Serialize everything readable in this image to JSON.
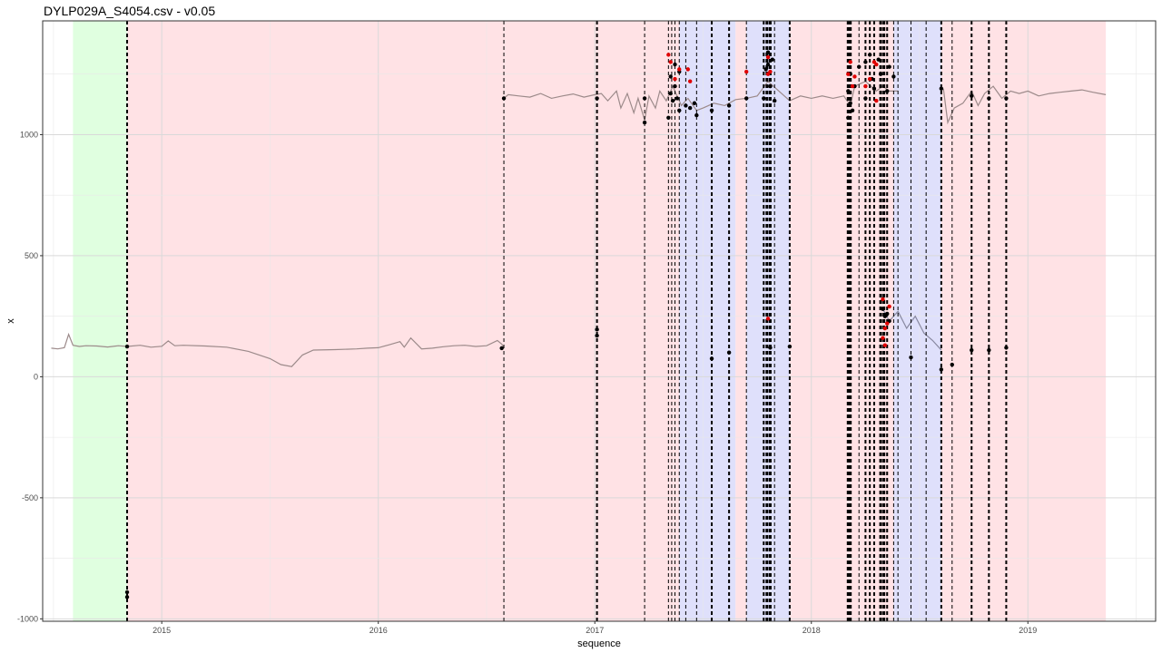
{
  "chart_data": {
    "type": "line",
    "title": "DYLP029A_S4054.csv - v0.05",
    "xlabel": "sequence",
    "ylabel": "x",
    "x_unit": "year",
    "xlim": [
      2014.45,
      2019.59
    ],
    "ylim": [
      -1010,
      1470
    ],
    "x_ticks": [
      2015,
      2016,
      2017,
      2018,
      2019
    ],
    "x_tick_labels": [
      "2015",
      "2016",
      "2017",
      "2018",
      "2019"
    ],
    "y_ticks": [
      -1000,
      -500,
      0,
      500,
      1000
    ],
    "y_tick_labels": [
      "-1000",
      "-500",
      "0",
      "500",
      "1000"
    ],
    "grid": true,
    "colors": {
      "line": "#9c8a8a",
      "line_blue": "#8888a0",
      "green_band": "#e0ffe0",
      "red_band": "#ffe2e5",
      "blue_band": "#dfe0fb",
      "point": "#000000",
      "point_red": "#e00000",
      "grid": "#d9d9d9",
      "border": "#333333"
    },
    "regions": [
      {
        "start": 2014.59,
        "end": 2014.84,
        "color": "green"
      },
      {
        "start": 2014.84,
        "end": 2017.39,
        "color": "red"
      },
      {
        "start": 2017.39,
        "end": 2017.65,
        "color": "blue"
      },
      {
        "start": 2017.65,
        "end": 2017.7,
        "color": "red"
      },
      {
        "start": 2017.7,
        "end": 2017.9,
        "color": "blue"
      },
      {
        "start": 2017.9,
        "end": 2018.38,
        "color": "red"
      },
      {
        "start": 2018.38,
        "end": 2018.6,
        "color": "blue"
      },
      {
        "start": 2018.6,
        "end": 2019.36,
        "color": "red"
      }
    ],
    "changepoints": [
      {
        "x": 2014.84,
        "width": 2
      },
      {
        "x": 2016.58,
        "width": 1
      },
      {
        "x": 2017.01,
        "width": 2
      },
      {
        "x": 2017.23,
        "width": 1
      },
      {
        "x": 2017.34,
        "width": 1
      },
      {
        "x": 2017.355,
        "width": 1
      },
      {
        "x": 2017.37,
        "width": 1
      },
      {
        "x": 2017.39,
        "width": 1
      },
      {
        "x": 2017.42,
        "width": 1
      },
      {
        "x": 2017.47,
        "width": 1
      },
      {
        "x": 2017.54,
        "width": 2
      },
      {
        "x": 2017.62,
        "width": 2
      },
      {
        "x": 2017.7,
        "width": 1
      },
      {
        "x": 2017.78,
        "width": 2
      },
      {
        "x": 2017.795,
        "width": 3
      },
      {
        "x": 2017.81,
        "width": 3
      },
      {
        "x": 2017.83,
        "width": 1
      },
      {
        "x": 2017.9,
        "width": 2
      },
      {
        "x": 2018.17,
        "width": 3
      },
      {
        "x": 2018.18,
        "width": 3
      },
      {
        "x": 2018.22,
        "width": 1
      },
      {
        "x": 2018.25,
        "width": 2
      },
      {
        "x": 2018.27,
        "width": 2
      },
      {
        "x": 2018.29,
        "width": 2
      },
      {
        "x": 2018.32,
        "width": 3
      },
      {
        "x": 2018.335,
        "width": 3
      },
      {
        "x": 2018.35,
        "width": 2
      },
      {
        "x": 2018.38,
        "width": 1
      },
      {
        "x": 2018.4,
        "width": 1
      },
      {
        "x": 2018.46,
        "width": 1
      },
      {
        "x": 2018.53,
        "width": 1
      },
      {
        "x": 2018.6,
        "width": 2
      },
      {
        "x": 2018.65,
        "width": 1
      },
      {
        "x": 2018.74,
        "width": 2
      },
      {
        "x": 2018.82,
        "width": 2
      },
      {
        "x": 2018.9,
        "width": 2
      }
    ],
    "series": [
      {
        "x": [
          2014.49,
          2014.52,
          2014.55,
          2014.57,
          2014.59,
          2014.62,
          2014.65,
          2014.7,
          2014.75,
          2014.8,
          2014.84,
          2014.9,
          2014.95,
          2015.0,
          2015.03,
          2015.06,
          2015.1,
          2015.2,
          2015.3,
          2015.4,
          2015.5,
          2015.55,
          2015.6,
          2015.65,
          2015.7,
          2015.8,
          2015.9,
          2015.95,
          2016.0,
          2016.05,
          2016.1,
          2016.12,
          2016.15,
          2016.2,
          2016.25,
          2016.3,
          2016.35,
          2016.4,
          2016.45,
          2016.5,
          2016.55,
          2016.57,
          2016.58
        ],
        "y": [
          118,
          115,
          120,
          175,
          130,
          125,
          128,
          127,
          123,
          128,
          125,
          130,
          122,
          126,
          148,
          128,
          130,
          127,
          122,
          105,
          75,
          50,
          42,
          90,
          110,
          112,
          115,
          118,
          120,
          132,
          145,
          122,
          160,
          115,
          118,
          124,
          128,
          130,
          125,
          128,
          150,
          135,
          122
        ]
      },
      {
        "x": [
          2016.58,
          2016.6,
          2016.65,
          2016.7,
          2016.75,
          2016.8,
          2016.85,
          2016.9,
          2016.95,
          2017.0,
          2017.03,
          2017.06,
          2017.1,
          2017.12,
          2017.15,
          2017.18,
          2017.2,
          2017.23,
          2017.25,
          2017.28,
          2017.3,
          2017.33,
          2017.36,
          2017.4,
          2017.43,
          2017.47,
          2017.5,
          2017.55,
          2017.6,
          2017.65,
          2017.7,
          2017.75,
          2017.8,
          2017.85,
          2017.9,
          2017.95,
          2018.0,
          2018.05,
          2018.1,
          2018.15,
          2018.18,
          2018.2,
          2018.25,
          2018.3,
          2018.33,
          2018.36,
          2018.4
        ],
        "y": [
          1150,
          1165,
          1160,
          1155,
          1170,
          1150,
          1160,
          1168,
          1155,
          1165,
          1170,
          1140,
          1180,
          1110,
          1170,
          1090,
          1150,
          1060,
          1160,
          1110,
          1180,
          1140,
          1200,
          1120,
          1150,
          1100,
          1110,
          1130,
          1120,
          1145,
          1150,
          1160,
          1220,
          1180,
          1140,
          1160,
          1150,
          1160,
          1150,
          1160,
          1120,
          1200,
          1220,
          1180,
          1200,
          1180,
          1180
        ]
      },
      {
        "x": [
          2018.33,
          2018.36,
          2018.4,
          2018.44,
          2018.48,
          2018.52,
          2018.56,
          2018.6
        ],
        "y": [
          280,
          230,
          270,
          200,
          250,
          180,
          150,
          110
        ],
        "color": "blue"
      },
      {
        "x": [
          2018.61,
          2018.63,
          2018.66,
          2018.7,
          2018.74,
          2018.77,
          2018.8,
          2018.84,
          2018.88,
          2018.92,
          2018.96,
          2019.0,
          2019.05,
          2019.1,
          2019.15,
          2019.2,
          2019.25,
          2019.3,
          2019.36
        ],
        "y": [
          1190,
          1050,
          1110,
          1130,
          1180,
          1120,
          1170,
          1200,
          1150,
          1180,
          1170,
          1180,
          1160,
          1170,
          1175,
          1180,
          1185,
          1175,
          1165
        ]
      }
    ],
    "points_black": [
      [
        2014.84,
        -890
      ],
      [
        2014.84,
        -910
      ],
      [
        2014.84,
        125
      ],
      [
        2016.57,
        118
      ],
      [
        2016.58,
        1150
      ],
      [
        2017.01,
        195
      ],
      [
        2017.01,
        170
      ],
      [
        2017.01,
        1150
      ],
      [
        2017.23,
        1050
      ],
      [
        2017.23,
        1150
      ],
      [
        2017.34,
        1070
      ],
      [
        2017.35,
        1170
      ],
      [
        2017.35,
        1240
      ],
      [
        2017.36,
        1140
      ],
      [
        2017.37,
        1290
      ],
      [
        2017.37,
        1200
      ],
      [
        2017.38,
        1150
      ],
      [
        2017.39,
        1260
      ],
      [
        2017.39,
        1100
      ],
      [
        2017.42,
        1120
      ],
      [
        2017.44,
        1110
      ],
      [
        2017.46,
        1130
      ],
      [
        2017.47,
        1080
      ],
      [
        2017.54,
        75
      ],
      [
        2017.54,
        1100
      ],
      [
        2017.62,
        100
      ],
      [
        2017.62,
        1120
      ],
      [
        2017.7,
        1150
      ],
      [
        2017.78,
        1150
      ],
      [
        2017.79,
        1270
      ],
      [
        2017.8,
        1340
      ],
      [
        2017.8,
        1290
      ],
      [
        2017.81,
        1200
      ],
      [
        2017.82,
        1310
      ],
      [
        2017.83,
        1140
      ],
      [
        2017.81,
        120
      ],
      [
        2017.9,
        125
      ],
      [
        2018.17,
        1070
      ],
      [
        2018.17,
        1180
      ],
      [
        2018.18,
        1250
      ],
      [
        2018.18,
        1130
      ],
      [
        2018.19,
        1100
      ],
      [
        2018.2,
        1200
      ],
      [
        2018.22,
        1280
      ],
      [
        2018.25,
        1300
      ],
      [
        2018.25,
        1150
      ],
      [
        2018.27,
        1330
      ],
      [
        2018.28,
        1230
      ],
      [
        2018.29,
        1190
      ],
      [
        2018.31,
        1310
      ],
      [
        2018.32,
        1250
      ],
      [
        2018.35,
        1180
      ],
      [
        2018.36,
        1280
      ],
      [
        2018.38,
        1240
      ],
      [
        2018.33,
        280
      ],
      [
        2018.34,
        250
      ],
      [
        2018.35,
        260
      ],
      [
        2018.36,
        230
      ],
      [
        2018.46,
        80
      ],
      [
        2018.6,
        30
      ],
      [
        2018.6,
        1190
      ],
      [
        2018.65,
        50
      ],
      [
        2018.74,
        110
      ],
      [
        2018.74,
        1160
      ],
      [
        2018.82,
        110
      ],
      [
        2018.82,
        1150
      ],
      [
        2018.9,
        120
      ],
      [
        2018.9,
        1150
      ]
    ],
    "points_red": [
      [
        2017.34,
        1330
      ],
      [
        2017.35,
        1300
      ],
      [
        2017.37,
        1230
      ],
      [
        2017.39,
        1270
      ],
      [
        2017.43,
        1270
      ],
      [
        2017.44,
        1220
      ],
      [
        2017.7,
        1260
      ],
      [
        2017.8,
        1320
      ],
      [
        2017.8,
        1250
      ],
      [
        2017.81,
        1260
      ],
      [
        2017.8,
        240
      ],
      [
        2018.17,
        1250
      ],
      [
        2018.18,
        1300
      ],
      [
        2018.19,
        1200
      ],
      [
        2018.2,
        1240
      ],
      [
        2018.25,
        1200
      ],
      [
        2018.27,
        1230
      ],
      [
        2018.29,
        1300
      ],
      [
        2018.3,
        1290
      ],
      [
        2018.3,
        1140
      ],
      [
        2018.33,
        320
      ],
      [
        2018.34,
        200
      ],
      [
        2018.33,
        160
      ],
      [
        2018.34,
        130
      ],
      [
        2018.35,
        220
      ],
      [
        2018.36,
        290
      ]
    ]
  }
}
